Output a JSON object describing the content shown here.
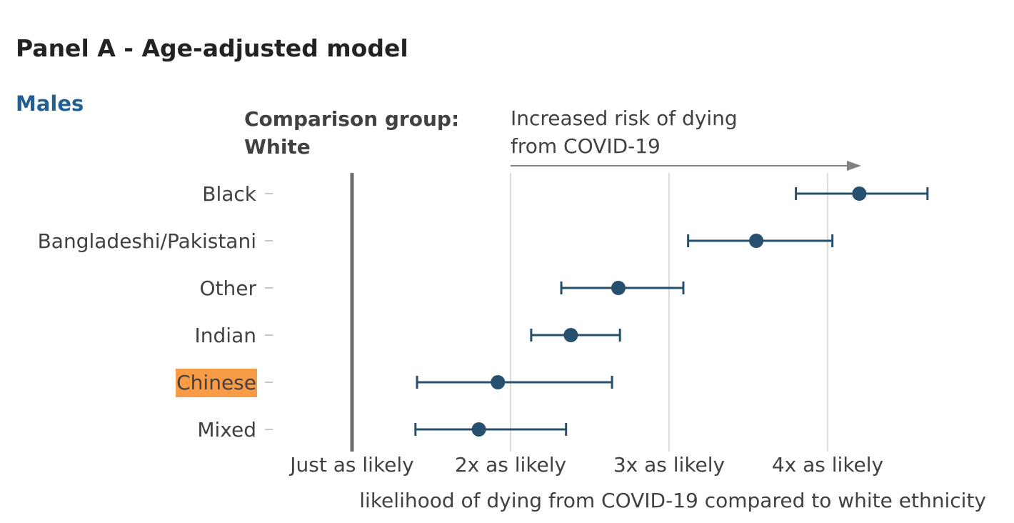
{
  "panel_title": "Panel A - Age-adjusted model",
  "subtitle": "Males",
  "comparison": {
    "line1": "Comparison group:",
    "line2": "White"
  },
  "annotation": {
    "line1": "Increased risk of dying",
    "line2": "from COVID-19"
  },
  "colors": {
    "series": "#27506f",
    "highlight": "#f79b47",
    "reference": "#6d6e71",
    "grid": "#cfcfcf",
    "arrow": "#808080"
  },
  "chart_data": {
    "type": "scatter",
    "title": "Panel A - Age-adjusted model",
    "subtitle": "Males",
    "xlabel": "likelihood of dying from COVID-19 compared to white ethnicity",
    "xlim": [
      1,
      4.6
    ],
    "x_ticks": [
      {
        "value": 1,
        "label": "Just as likely"
      },
      {
        "value": 2,
        "label": "2x as likely"
      },
      {
        "value": 3,
        "label": "3x as likely"
      },
      {
        "value": 4,
        "label": "4x as likely"
      }
    ],
    "reference_line": 1,
    "grid": true,
    "categories": [
      "Black",
      "Bangladeshi/Pakistani",
      "Other",
      "Indian",
      "Chinese",
      "Mixed"
    ],
    "highlighted_category": "Chinese",
    "estimates": [
      4.2,
      3.55,
      2.68,
      2.38,
      1.92,
      1.8
    ],
    "lower": [
      3.8,
      3.12,
      2.32,
      2.13,
      1.41,
      1.4
    ],
    "upper": [
      4.63,
      4.03,
      3.09,
      2.69,
      2.64,
      2.35
    ]
  }
}
